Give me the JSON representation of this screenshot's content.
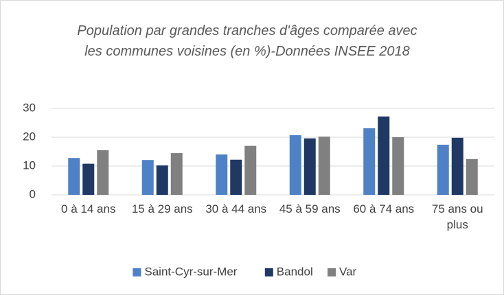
{
  "chart_data": {
    "type": "bar",
    "title": "Population par grandes tranches d'âges comparée avec les communes voisines (en %)-Données INSEE 2018",
    "categories": [
      "0 à 14 ans",
      "15 à 29 ans",
      "30 à 44 ans",
      "45 à 59 ans",
      "60 à 74 ans",
      "75 ans ou plus"
    ],
    "series": [
      {
        "name": "Saint-Cyr-sur-Mer",
        "color": "#4f81c7",
        "values": [
          12.8,
          12.1,
          14.0,
          20.7,
          23.1,
          17.4
        ]
      },
      {
        "name": "Bandol",
        "color": "#1f3864",
        "values": [
          10.8,
          10.2,
          12.2,
          19.6,
          27.2,
          19.8
        ]
      },
      {
        "name": "Var",
        "color": "#808080",
        "values": [
          15.5,
          14.5,
          17.0,
          20.2,
          20.0,
          12.4
        ]
      }
    ],
    "ylim": [
      0,
      30
    ],
    "yticks": [
      0,
      10,
      20,
      30
    ],
    "grid": true,
    "legend": "bottom"
  }
}
